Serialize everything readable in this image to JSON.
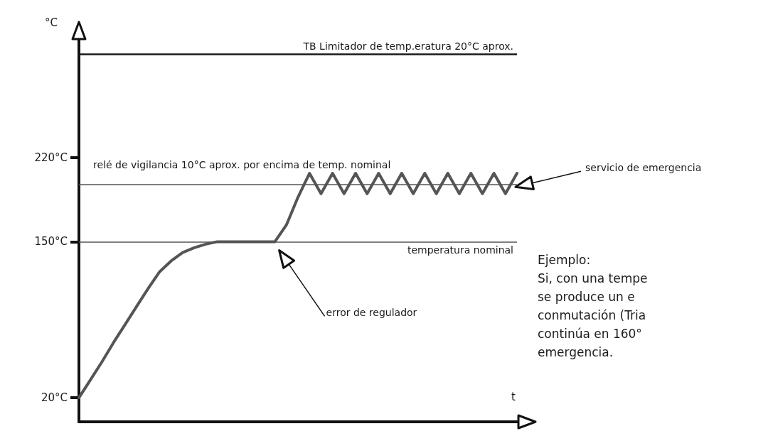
{
  "chart_data": {
    "type": "line",
    "ylabel": "°C",
    "xlabel": "t",
    "categories": [
      null,
      null,
      null,
      null,
      null,
      null,
      null,
      null,
      null,
      null,
      null,
      null,
      null,
      null,
      null,
      null,
      null,
      null,
      null,
      null,
      null,
      null,
      null,
      null,
      null,
      null,
      null,
      null,
      null,
      null,
      null,
      null,
      null,
      null,
      null,
      null,
      null,
      null,
      null
    ],
    "series": [
      {
        "color": "#555555",
        "values": [
          20,
          35,
          50,
          66,
          81,
          96,
          111,
          125,
          134,
          141,
          145,
          148,
          150,
          150,
          150,
          150,
          150,
          150,
          164,
          187,
          207,
          190,
          207,
          190,
          207,
          190,
          207,
          190,
          207,
          190,
          207,
          190,
          207,
          190,
          207,
          190,
          207,
          190,
          207
        ]
      }
    ],
    "ylim": [
      0,
      320
    ],
    "yticks": [
      {
        "value": 20,
        "label": "20°C"
      },
      {
        "value": 150,
        "label": "150°C"
      },
      {
        "value": 220,
        "label": "220°C"
      }
    ],
    "tick_labels": "y",
    "grid": false,
    "marker": "none",
    "line_style": "solid",
    "ref_lines": [
      {
        "axis": "y",
        "value": 306,
        "label": "TB Limitador de temp.eratura 20°C aprox.",
        "color": "#1a1a1a"
      },
      {
        "axis": "y",
        "value": 198,
        "label": "relé de vigilancia 10°C aprox. por encima de temp. nominal",
        "color": "#555555"
      },
      {
        "axis": "y",
        "value": 150,
        "label": "temperatura nominal",
        "color": "#555555"
      }
    ],
    "annotations": [
      "error de regulador",
      "servicio de emergencia",
      "Ejemplo:\nSi, con una tempe\nse produce un e\nconmutación (Tria\ncontinúa en 160°\nemergencia."
    ]
  }
}
